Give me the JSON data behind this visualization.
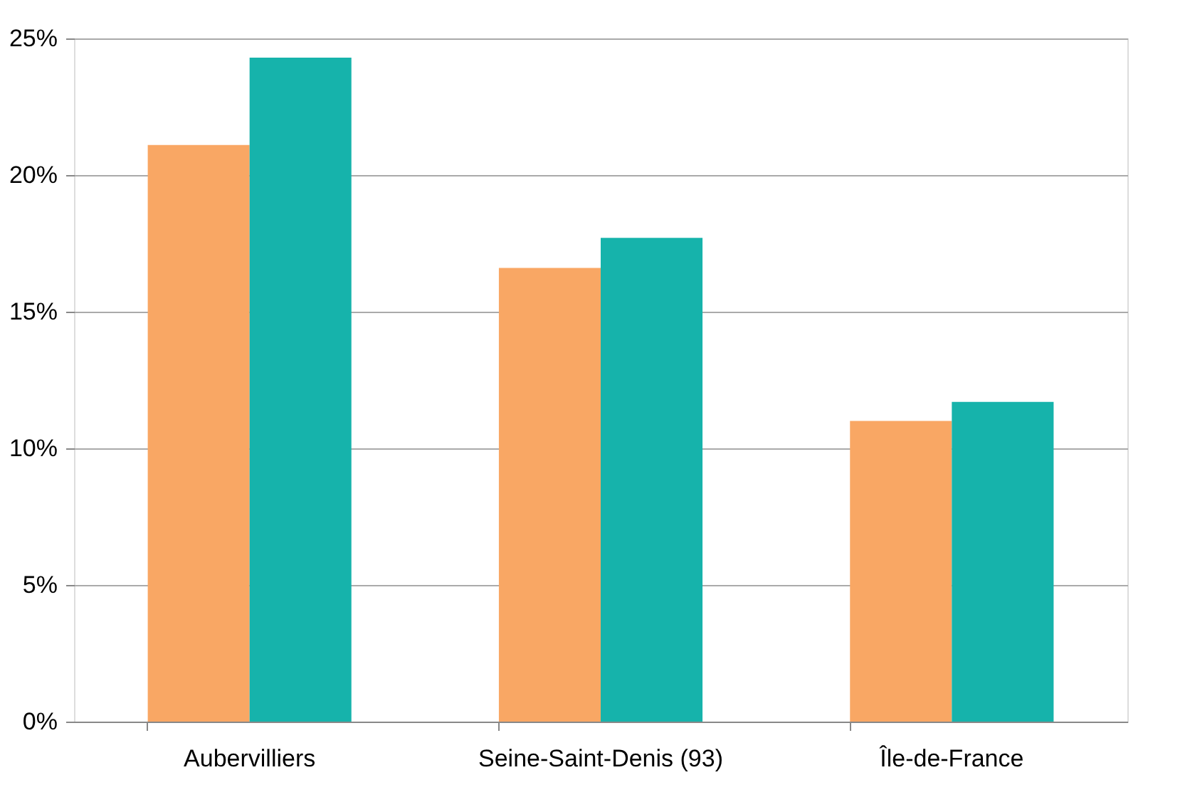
{
  "chart_data": {
    "type": "bar",
    "categories": [
      "Aubervilliers",
      "Seine-Saint-Denis (93)",
      "Île-de-France"
    ],
    "series": [
      {
        "color": "#f9a764",
        "values": [
          21.1,
          16.6,
          11.0
        ]
      },
      {
        "color": "#16b3ab",
        "values": [
          24.3,
          17.7,
          11.7
        ]
      }
    ],
    "ylim": [
      0,
      25
    ],
    "yticks": [
      {
        "value": 0,
        "label": "0%"
      },
      {
        "value": 5,
        "label": "5%"
      },
      {
        "value": 10,
        "label": "10%"
      },
      {
        "value": 15,
        "label": "15%"
      },
      {
        "value": 20,
        "label": "20%"
      },
      {
        "value": 25,
        "label": "25%"
      }
    ],
    "grid": "y",
    "legend": false
  }
}
